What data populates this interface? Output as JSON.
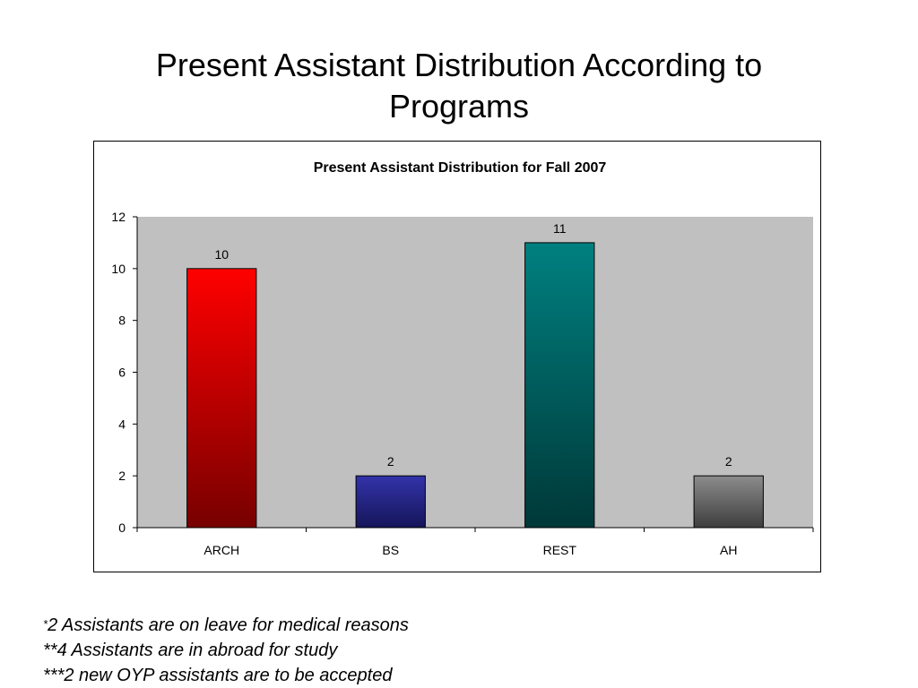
{
  "slide": {
    "title_line1": "Present Assistant Distribution According to",
    "title_line2": "Programs"
  },
  "chart_data": {
    "type": "bar",
    "title": "Present Assistant Distribution for Fall 2007",
    "xlabel": "",
    "ylabel": "",
    "categories": [
      "ARCH",
      "BS",
      "REST",
      "AH"
    ],
    "values": [
      10,
      2,
      11,
      2
    ],
    "data_labels": [
      "10",
      "2",
      "11",
      "2"
    ],
    "ylim": [
      0,
      12
    ],
    "yticks": [
      "0",
      "2",
      "4",
      "6",
      "8",
      "10",
      "12"
    ],
    "grid": false,
    "legend": false,
    "plot_background": "#C0C0C0",
    "bar_colors": [
      {
        "top": "#FF0000",
        "bottom": "#770000"
      },
      {
        "top": "#3333AA",
        "bottom": "#15155A"
      },
      {
        "top": "#008080",
        "bottom": "#003838"
      },
      {
        "top": "#8C8C8C",
        "bottom": "#3E3E3E"
      }
    ]
  },
  "footnotes": [
    {
      "star": "*",
      "text": "2 Assistants are on leave for medical reasons"
    },
    {
      "star": "",
      "text": "**4 Assistants are in abroad for study"
    },
    {
      "star": "",
      "text": "***2 new OYP assistants are to be accepted"
    }
  ]
}
